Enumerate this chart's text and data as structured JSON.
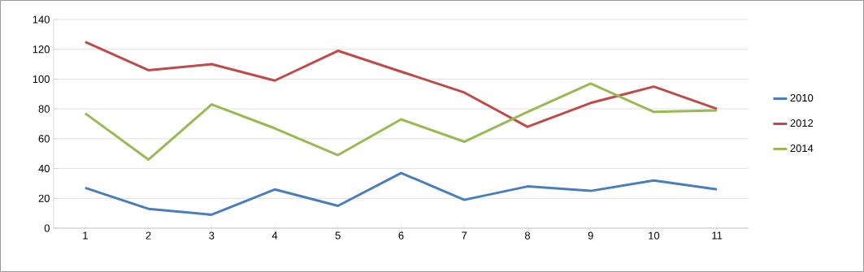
{
  "chart_data": {
    "type": "line",
    "categories": [
      "1",
      "2",
      "3",
      "4",
      "5",
      "6",
      "7",
      "8",
      "9",
      "10",
      "11"
    ],
    "series": [
      {
        "name": "2010",
        "color": "#4a7ebb",
        "values": [
          27,
          13,
          9,
          26,
          15,
          37,
          19,
          28,
          25,
          32,
          26
        ]
      },
      {
        "name": "2012",
        "color": "#be4b48",
        "values": [
          125,
          106,
          110,
          99,
          119,
          105,
          91,
          68,
          84,
          95,
          80
        ]
      },
      {
        "name": "2014",
        "color": "#98b954",
        "values": [
          77,
          46,
          83,
          67,
          49,
          73,
          58,
          78,
          97,
          78,
          79
        ]
      }
    ],
    "ylim": [
      0,
      140
    ],
    "yticks": [
      0,
      20,
      40,
      60,
      80,
      100,
      120,
      140
    ],
    "grid": "y",
    "legend": "right",
    "marker": "none",
    "line_style": "solid"
  }
}
